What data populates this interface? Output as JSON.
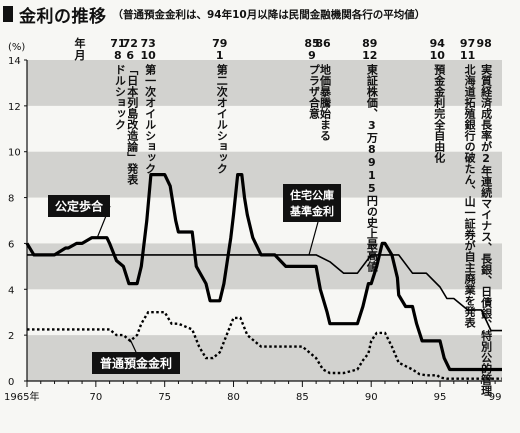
{
  "title": "金利の推移",
  "subtitle": "（普通預金金利は、94年10月以降は民間金融機関各行の平均値）",
  "chart_data": {
    "type": "line",
    "ylabel": "(%)",
    "ylim": [
      0,
      14
    ],
    "xlim": [
      1965,
      1999.5
    ],
    "y_ticks": [
      "0",
      "2",
      "4",
      "6",
      "8",
      "10",
      "12",
      "14"
    ],
    "x_ticks": [
      {
        "value": 1965,
        "label": "1965年"
      },
      {
        "value": 1970,
        "label": "70"
      },
      {
        "value": 1975,
        "label": "75"
      },
      {
        "value": 1980,
        "label": "80"
      },
      {
        "value": 1985,
        "label": "85"
      },
      {
        "value": 1990,
        "label": "90"
      },
      {
        "value": 1995,
        "label": "95"
      },
      {
        "value": 1999,
        "label": "99"
      }
    ],
    "grid": "horizontal gray bands",
    "date_header": {
      "year": "年",
      "month": "月"
    },
    "events": [
      {
        "x": 1971.6,
        "year": "71",
        "month": "8",
        "text": "ドルショック"
      },
      {
        "x": 1972.5,
        "year": "72",
        "month": "6",
        "text": "「日本列島改造論」発表"
      },
      {
        "x": 1973.8,
        "year": "73",
        "month": "10",
        "text": "第一次オイルショック"
      },
      {
        "x": 1979.0,
        "year": "79",
        "month": "1",
        "text": "第二次オイルショック"
      },
      {
        "x": 1985.7,
        "year": "85",
        "month": "9",
        "text": "プラザ合意"
      },
      {
        "x": 1986.5,
        "year": "86",
        "month": "",
        "text": "地価暴騰始まる"
      },
      {
        "x": 1989.9,
        "year": "89",
        "month": "12",
        "text": "東証株価、3万8915円の史上最高値"
      },
      {
        "x": 1994.8,
        "year": "94",
        "month": "10",
        "text": "預金金利完全自由化"
      },
      {
        "x": 1997.0,
        "year": "97",
        "month": "11",
        "text": "北海道拓殖銀行の破たん、山一証券が自主廃業を発表"
      },
      {
        "x": 1998.2,
        "year": "98",
        "month": "",
        "text": "実質経済成長率が2年連続マイナス、長銀、日債銀、特別公的管理"
      }
    ],
    "series": [
      {
        "name": "公定歩合",
        "style": "thick",
        "x": [
          1965.0,
          1965.5,
          1966.0,
          1967.0,
          1967.8,
          1968.0,
          1968.6,
          1969.0,
          1969.7,
          1970.0,
          1970.8,
          1971.0,
          1971.5,
          1972.0,
          1972.4,
          1973.0,
          1973.3,
          1973.7,
          1974.0,
          1974.8,
          1975.0,
          1975.4,
          1975.8,
          1976.0,
          1977.0,
          1977.3,
          1978.0,
          1978.3,
          1979.0,
          1979.3,
          1979.8,
          1980.0,
          1980.3,
          1980.6,
          1980.8,
          1981.0,
          1981.4,
          1982.0,
          1983.0,
          1983.8,
          1984.0,
          1985.0,
          1986.0,
          1986.3,
          1986.8,
          1987.0,
          1987.2,
          1988.0,
          1989.0,
          1989.4,
          1989.8,
          1990.0,
          1990.4,
          1990.8,
          1991.0,
          1991.5,
          1991.9,
          1992.0,
          1992.5,
          1993.0,
          1993.3,
          1993.7,
          1994.0,
          1995.0,
          1995.3,
          1995.7,
          1996.0,
          1999.5
        ],
        "values": [
          6.0,
          5.5,
          5.5,
          5.5,
          5.8,
          5.8,
          6.0,
          6.0,
          6.25,
          6.25,
          6.25,
          6.0,
          5.25,
          5.0,
          4.25,
          4.25,
          5.0,
          7.0,
          9.0,
          9.0,
          9.0,
          8.5,
          7.0,
          6.5,
          6.5,
          5.0,
          4.25,
          3.5,
          3.5,
          4.25,
          6.25,
          7.25,
          9.0,
          9.0,
          8.0,
          7.25,
          6.25,
          5.5,
          5.5,
          5.0,
          5.0,
          5.0,
          5.0,
          4.0,
          3.0,
          2.5,
          2.5,
          2.5,
          2.5,
          3.25,
          4.25,
          4.25,
          5.0,
          6.0,
          6.0,
          5.5,
          4.5,
          3.75,
          3.25,
          3.25,
          2.5,
          1.75,
          1.75,
          1.75,
          1.0,
          0.5,
          0.5,
          0.5
        ]
      },
      {
        "name": "住宅公庫基準金利",
        "style": "thin",
        "x": [
          1965.0,
          1966.0,
          1969.0,
          1970.0,
          1973.0,
          1974.0,
          1978.0,
          1979.0,
          1980.0,
          1981.0,
          1983.0,
          1984.0,
          1985.0,
          1986.0,
          1987.0,
          1988.0,
          1989.0,
          1990.0,
          1990.5,
          1991.0,
          1992.0,
          1993.0,
          1994.0,
          1995.0,
          1995.5,
          1996.0,
          1997.0,
          1998.0,
          1998.7,
          1999.5
        ],
        "values": [
          5.5,
          5.5,
          5.5,
          5.5,
          5.5,
          5.5,
          5.5,
          5.5,
          5.5,
          5.5,
          5.5,
          5.5,
          5.5,
          5.5,
          5.2,
          4.7,
          4.7,
          5.5,
          5.5,
          5.5,
          5.5,
          4.7,
          4.7,
          4.1,
          3.6,
          3.6,
          3.1,
          3.1,
          2.2,
          2.2
        ]
      },
      {
        "name": "普通預金金利",
        "style": "dotted",
        "x": [
          1965.0,
          1970.0,
          1971.0,
          1971.5,
          1972.0,
          1972.5,
          1973.0,
          1973.3,
          1973.8,
          1974.0,
          1975.0,
          1975.5,
          1976.0,
          1977.0,
          1977.5,
          1978.0,
          1978.5,
          1979.0,
          1979.5,
          1980.0,
          1980.5,
          1981.0,
          1981.5,
          1982.0,
          1983.0,
          1985.0,
          1986.0,
          1986.5,
          1987.0,
          1988.0,
          1989.0,
          1989.4,
          1989.8,
          1990.0,
          1990.4,
          1991.0,
          1991.5,
          1992.0,
          1993.0,
          1993.5,
          1994.0,
          1994.8,
          1995.0,
          1995.5,
          1996.0,
          1999.5
        ],
        "values": [
          2.25,
          2.25,
          2.25,
          2.0,
          2.0,
          1.75,
          2.0,
          2.5,
          3.0,
          3.0,
          3.0,
          2.5,
          2.5,
          2.25,
          1.5,
          1.0,
          1.0,
          1.25,
          2.0,
          2.75,
          2.75,
          2.0,
          1.75,
          1.5,
          1.5,
          1.5,
          1.0,
          0.5,
          0.35,
          0.35,
          0.5,
          0.9,
          1.2,
          1.75,
          2.1,
          2.1,
          1.5,
          0.8,
          0.5,
          0.3,
          0.25,
          0.25,
          0.15,
          0.1,
          0.1,
          0.1
        ]
      }
    ],
    "series_labels": [
      "公定歩合",
      "住宅公庫基準金利",
      "普通預金金利"
    ]
  }
}
